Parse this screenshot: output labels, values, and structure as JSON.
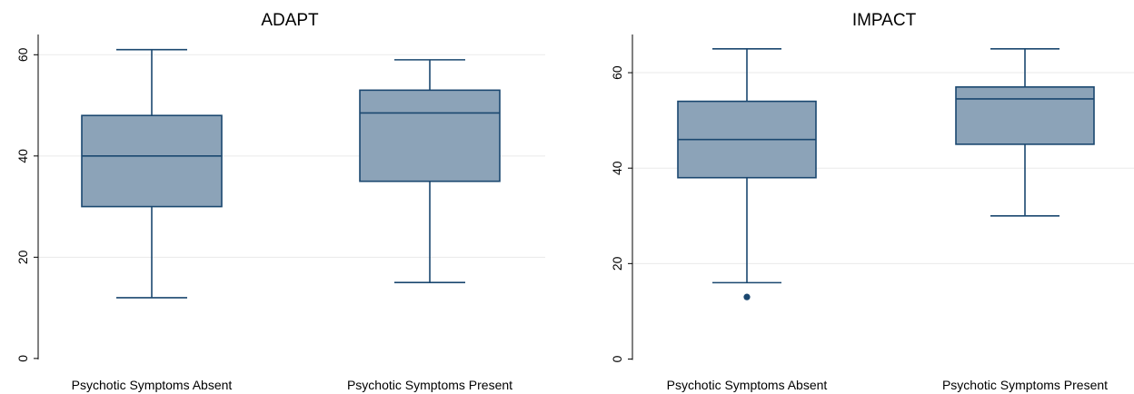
{
  "colors": {
    "box_fill": "#8ca3b8",
    "box_stroke": "#1a476f",
    "grid": "#eaeaea",
    "background": "#ffffff"
  },
  "chart_data": [
    {
      "type": "box",
      "title": "ADAPT",
      "xlabel": "",
      "ylabel": "",
      "ylim": [
        -2,
        64
      ],
      "yticks": [
        0,
        20,
        40,
        60
      ],
      "grid": true,
      "categories": [
        "Psychotic Symptoms Absent",
        "Psychotic Symptoms Present"
      ],
      "boxes": [
        {
          "category": "Psychotic Symptoms Absent",
          "whisker_low": 12,
          "q1": 30,
          "median": 40,
          "q3": 48,
          "whisker_high": 61,
          "outliers": []
        },
        {
          "category": "Psychotic Symptoms Present",
          "whisker_low": 15,
          "q1": 35,
          "median": 48.5,
          "q3": 53,
          "whisker_high": 59,
          "outliers": []
        }
      ]
    },
    {
      "type": "box",
      "title": "IMPACT",
      "xlabel": "",
      "ylabel": "",
      "ylim": [
        -2,
        68
      ],
      "yticks": [
        0,
        20,
        40,
        60
      ],
      "grid": true,
      "categories": [
        "Psychotic Symptoms Absent",
        "Psychotic Symptoms Present"
      ],
      "boxes": [
        {
          "category": "Psychotic Symptoms Absent",
          "whisker_low": 16,
          "q1": 38,
          "median": 46,
          "q3": 54,
          "whisker_high": 65,
          "outliers": [
            13
          ]
        },
        {
          "category": "Psychotic Symptoms Present",
          "whisker_low": 30,
          "q1": 45,
          "median": 54.5,
          "q3": 57,
          "whisker_high": 65,
          "outliers": []
        }
      ]
    }
  ]
}
